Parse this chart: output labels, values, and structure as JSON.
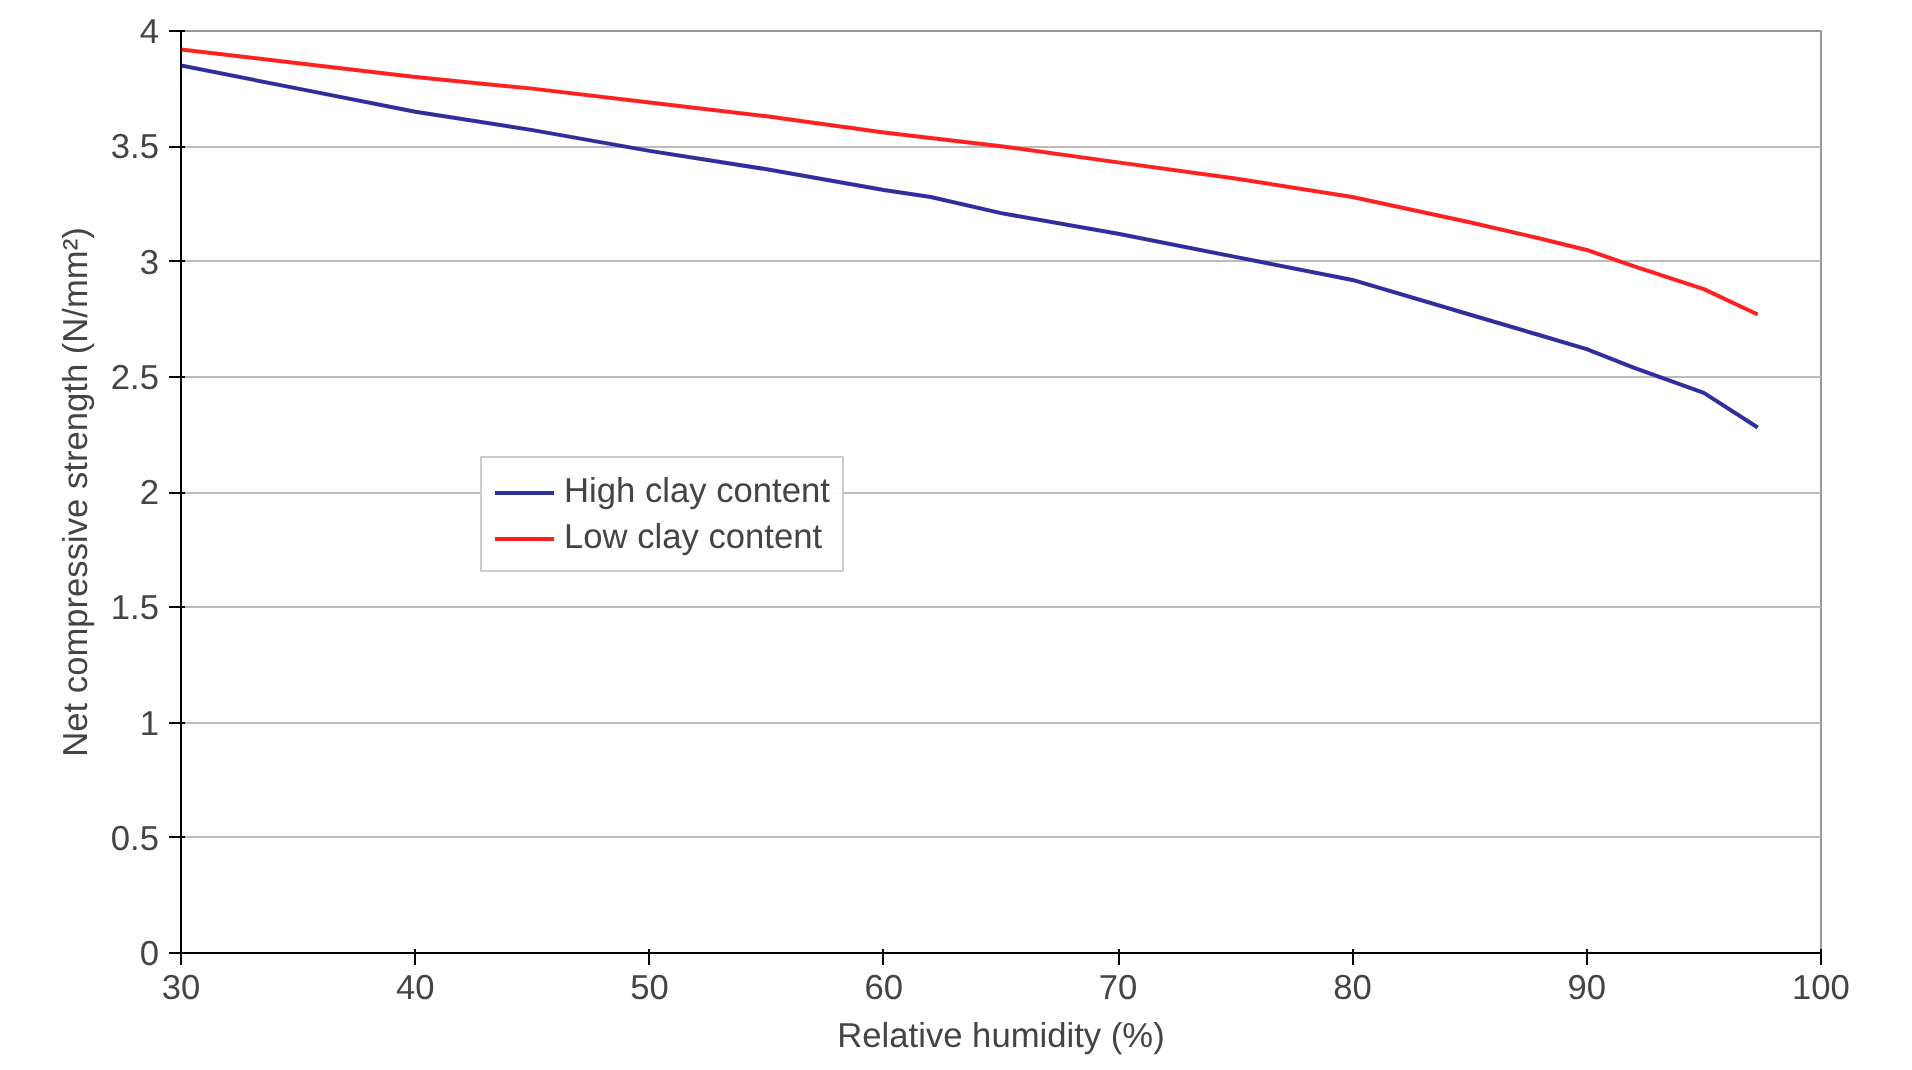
{
  "chart_data": {
    "type": "line",
    "xlabel": "Relative humidity (%)",
    "ylabel": "Net compressive strength (N/mm²)",
    "xlim": [
      30,
      100
    ],
    "xticks": [
      30,
      40,
      50,
      60,
      70,
      80,
      90,
      100
    ],
    "ylim": [
      0,
      4
    ],
    "yticks": [
      0,
      0.5,
      1,
      1.5,
      2,
      2.5,
      3,
      3.5,
      4
    ],
    "grid": "y",
    "legend": "left",
    "marker": "none",
    "line_style": "solid",
    "series": [
      {
        "name": "High clay content",
        "color": "#2e2e9e",
        "x": [
          30,
          35,
          40,
          45,
          50,
          55,
          60,
          62,
          65,
          70,
          75,
          80,
          85,
          88,
          90,
          92,
          95,
          97.3
        ],
        "values": [
          3.85,
          3.75,
          3.65,
          3.57,
          3.48,
          3.4,
          3.31,
          3.28,
          3.21,
          3.12,
          3.02,
          2.92,
          2.77,
          2.68,
          2.62,
          2.54,
          2.43,
          2.28
        ]
      },
      {
        "name": "Low clay content",
        "color": "#ff2020",
        "x": [
          30,
          35,
          40,
          45,
          50,
          55,
          60,
          65,
          70,
          75,
          80,
          85,
          88,
          90,
          92,
          95,
          97.3
        ],
        "values": [
          3.92,
          3.86,
          3.8,
          3.75,
          3.69,
          3.63,
          3.56,
          3.5,
          3.43,
          3.36,
          3.28,
          3.17,
          3.1,
          3.05,
          2.98,
          2.88,
          2.77
        ]
      }
    ]
  }
}
